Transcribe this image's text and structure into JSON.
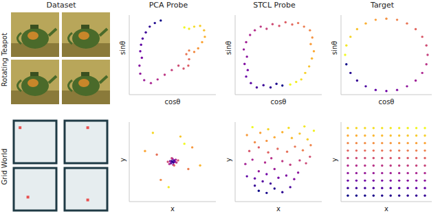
{
  "column_titles": [
    "Dataset",
    "PCA Probe",
    "STCL Probe",
    "Target"
  ],
  "row_labels": [
    "Rotating Teapot",
    "Grid World"
  ],
  "dataset_examples": {
    "grid_world_agent": {
      "x": [
        0.08,
        0.55,
        0.3,
        0.55
      ],
      "y": [
        0.9,
        0.9,
        0.28,
        0.2
      ]
    }
  },
  "chart_data": [
    {
      "type": "scatter",
      "x_label": "cosθ",
      "y_label": "sinθ",
      "tick_labels": false,
      "xlim": [
        -1.1,
        1.1
      ],
      "ylim": [
        -1.1,
        1.1
      ],
      "x": [
        -0.3,
        -0.45,
        -0.58,
        -0.68,
        -0.76,
        -0.8,
        -0.82,
        -0.78,
        -0.84,
        -0.82,
        -0.72,
        -0.55,
        -0.38,
        -0.2,
        -0.02,
        0.15,
        0.28,
        0.4,
        0.42,
        0.35,
        0.42,
        0.55,
        0.65,
        0.75,
        0.82,
        0.8,
        0.7,
        0.55,
        0.42,
        0.3
      ],
      "y": [
        0.95,
        0.88,
        0.78,
        0.62,
        0.45,
        0.28,
        0.1,
        -0.08,
        -0.3,
        -0.52,
        -0.7,
        -0.78,
        -0.68,
        -0.55,
        -0.42,
        -0.3,
        -0.38,
        -0.3,
        -0.12,
        0.02,
        0.12,
        0.08,
        0.18,
        0.35,
        0.5,
        0.68,
        0.8,
        0.78,
        0.72,
        0.76
      ]
    },
    {
      "type": "scatter",
      "x_label": "cosθ",
      "y_label": "sinθ",
      "tick_labels": false,
      "xlim": [
        -1.1,
        1.1
      ],
      "ylim": [
        -1.1,
        1.1
      ],
      "x": [
        0.1,
        -0.05,
        -0.2,
        -0.38,
        -0.55,
        -0.7,
        -0.82,
        -0.78,
        -0.86,
        -0.8,
        -0.88,
        -0.82,
        -0.72,
        -0.6,
        -0.45,
        -0.3,
        -0.15,
        0.02,
        0.18,
        0.35,
        0.5,
        0.65,
        0.8,
        0.86,
        0.82,
        0.9,
        0.85,
        0.78,
        0.68,
        0.58,
        0.45,
        0.3
      ],
      "y": [
        -0.85,
        -0.8,
        -0.9,
        -0.84,
        -0.9,
        -0.78,
        -0.6,
        -0.42,
        -0.25,
        -0.05,
        0.15,
        0.35,
        0.55,
        0.68,
        0.78,
        0.72,
        0.85,
        0.8,
        0.9,
        0.84,
        0.88,
        0.78,
        0.68,
        0.48,
        0.3,
        0.1,
        -0.1,
        -0.32,
        -0.5,
        -0.68,
        -0.75,
        -0.82
      ]
    },
    {
      "type": "scatter",
      "x_label": "cosθ",
      "y_label": "sinθ",
      "tick_labels": false,
      "xlim": [
        -1.1,
        1.1
      ],
      "ylim": [
        -1.1,
        1.1
      ],
      "x": [
        -0.97,
        -0.87,
        -0.71,
        -0.5,
        -0.26,
        0,
        0.26,
        0.5,
        0.71,
        0.87,
        0.97,
        1,
        0.97,
        0.87,
        0.71,
        0.5,
        0.26,
        0,
        -0.26,
        -0.5,
        -0.71,
        -0.87,
        -0.97,
        -1
      ],
      "y": [
        -0.26,
        -0.5,
        -0.71,
        -0.87,
        -0.97,
        -1,
        -0.97,
        -0.87,
        -0.71,
        -0.5,
        -0.26,
        0,
        0.26,
        0.5,
        0.71,
        0.87,
        0.97,
        1,
        0.97,
        0.87,
        0.71,
        0.5,
        0.26,
        0
      ]
    },
    {
      "type": "scatter",
      "x_label": "x",
      "y_label": "y",
      "tick_labels": false,
      "xlim": [
        -1,
        10
      ],
      "ylim": [
        -1,
        10
      ],
      "x": [
        4.4,
        4.6,
        4.5,
        4.7,
        4.3,
        4.8,
        4.2,
        4.5,
        4.6,
        4.9,
        4.1,
        5.0,
        4.4,
        3.9,
        5.2,
        4.7,
        2.5,
        6.5,
        3.0,
        7.0,
        1.0,
        8.0,
        5.5,
        2.0,
        4.0,
        6.0
      ],
      "y": [
        4.6,
        4.4,
        4.5,
        4.7,
        4.3,
        4.5,
        4.6,
        4.9,
        4.1,
        4.8,
        4.2,
        4.4,
        5.0,
        4.5,
        4.7,
        4.0,
        5.5,
        3.5,
        2.0,
        6.5,
        6.0,
        4.0,
        8.0,
        8.5,
        1.0,
        7.0
      ]
    },
    {
      "type": "scatter",
      "x_label": "x",
      "y_label": "y",
      "tick_labels": false,
      "xlim": [
        -1,
        10
      ],
      "ylim": [
        -1,
        10
      ],
      "x": [
        2,
        3,
        4,
        5,
        1.5,
        3.5,
        6,
        2.5,
        0.5,
        1.5,
        3,
        4.5,
        5.5,
        6.5,
        7,
        2,
        4,
        0.3,
        1.2,
        2.8,
        3.6,
        5,
        6,
        7.2,
        8,
        8.5,
        0.8,
        2,
        3.2,
        4.4,
        5.6,
        6.6,
        7.6,
        8.6,
        1.5,
        3,
        0.5,
        2.2,
        4,
        5,
        6.2,
        7.2,
        8.2,
        3.2,
        5.8,
        7.8,
        9,
        1.2
      ],
      "y": [
        0.5,
        0.2,
        0.8,
        0.3,
        1.2,
        1.5,
        1,
        1.8,
        2.5,
        2.2,
        2.8,
        2.3,
        2.6,
        2.1,
        3,
        3.2,
        3.5,
        4.2,
        4.8,
        4.4,
        5,
        4.6,
        4.1,
        4.7,
        4.3,
        5.2,
        6,
        6.5,
        5.8,
        6.3,
        5.9,
        6.6,
        6.1,
        6.8,
        7.2,
        7.4,
        8.2,
        8.5,
        7.9,
        8.6,
        7.8,
        8.4,
        7.6,
        9,
        9.2,
        9.4,
        8.8,
        9.3
      ]
    },
    {
      "type": "scatter",
      "x_label": "x",
      "y_label": "y",
      "tick_labels": false,
      "xlim": [
        -0.8,
        9.8
      ],
      "ylim": [
        -0.8,
        9.8
      ],
      "x": [
        0,
        1,
        2,
        3,
        4,
        5,
        6,
        7,
        8,
        9,
        0,
        1,
        2,
        3,
        4,
        5,
        6,
        7,
        8,
        9,
        0,
        1,
        2,
        3,
        4,
        5,
        6,
        7,
        8,
        9,
        0,
        1,
        2,
        3,
        4,
        5,
        6,
        7,
        8,
        9,
        0,
        1,
        2,
        3,
        4,
        5,
        6,
        7,
        8,
        9,
        0,
        1,
        2,
        3,
        4,
        5,
        6,
        7,
        8,
        9,
        0,
        1,
        2,
        3,
        4,
        5,
        6,
        7,
        8,
        9,
        0,
        1,
        2,
        3,
        4,
        5,
        6,
        7,
        8,
        9,
        0,
        1,
        2,
        3,
        4,
        5,
        6,
        7,
        8,
        9,
        0,
        1,
        2,
        3,
        4,
        5,
        6,
        7,
        8,
        9
      ],
      "y": [
        0,
        0,
        0,
        0,
        0,
        0,
        0,
        0,
        0,
        0,
        1,
        1,
        1,
        1,
        1,
        1,
        1,
        1,
        1,
        1,
        2,
        2,
        2,
        2,
        2,
        2,
        2,
        2,
        2,
        2,
        3,
        3,
        3,
        3,
        3,
        3,
        3,
        3,
        3,
        3,
        4,
        4,
        4,
        4,
        4,
        4,
        4,
        4,
        4,
        4,
        5,
        5,
        5,
        5,
        5,
        5,
        5,
        5,
        5,
        5,
        6,
        6,
        6,
        6,
        6,
        6,
        6,
        6,
        6,
        6,
        7,
        7,
        7,
        7,
        7,
        7,
        7,
        7,
        7,
        7,
        8,
        8,
        8,
        8,
        8,
        8,
        8,
        8,
        8,
        8,
        9,
        9,
        9,
        9,
        9,
        9,
        9,
        9,
        9,
        9
      ]
    }
  ]
}
